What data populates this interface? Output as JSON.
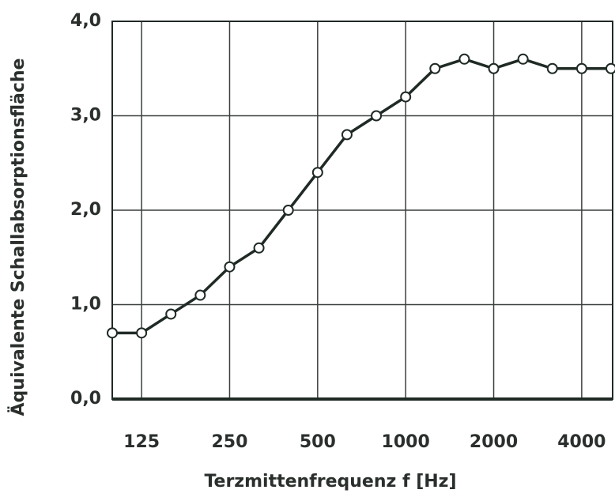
{
  "chart_data": {
    "type": "line",
    "x_label": "Terzmittenfrequenz f [Hz]",
    "y_label": "Äquivalente Schallabsorptionsfläche",
    "categories": [
      null,
      "125",
      null,
      null,
      "250",
      null,
      null,
      "500",
      null,
      null,
      "1000",
      null,
      null,
      "2000",
      null,
      null,
      "4000",
      null
    ],
    "series": [
      {
        "color": "#1f2a24",
        "values": [
          0.7,
          0.7,
          0.9,
          1.1,
          1.4,
          1.6,
          2.0,
          2.4,
          2.8,
          3.0,
          3.2,
          3.5,
          3.6,
          3.5,
          3.6,
          3.5,
          3.5,
          3.5
        ]
      }
    ],
    "ylim": [
      0,
      4
    ],
    "yticks": [
      {
        "value": 0,
        "label": "0,0"
      },
      {
        "value": 1,
        "label": "1,0"
      },
      {
        "value": 2,
        "label": "2,0"
      },
      {
        "value": 3,
        "label": "3,0"
      },
      {
        "value": 4,
        "label": "4,0"
      }
    ],
    "grid": true
  }
}
